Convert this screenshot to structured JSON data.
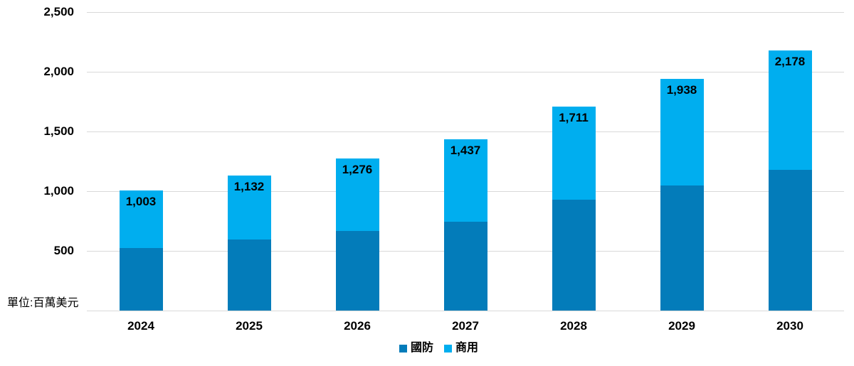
{
  "unit_label": "單位:百萬美元",
  "chart_data": {
    "type": "bar",
    "stacked": true,
    "title": "",
    "categories": [
      "2024",
      "2025",
      "2026",
      "2027",
      "2028",
      "2029",
      "2030"
    ],
    "series": [
      {
        "name": "國防",
        "color": "#037CBA",
        "values": [
          525,
          595,
          665,
          745,
          930,
          1050,
          1180
        ]
      },
      {
        "name": "商用",
        "color": "#00AEEF",
        "values": [
          478,
          537,
          611,
          692,
          781,
          888,
          998
        ]
      }
    ],
    "totals": [
      1003,
      1132,
      1276,
      1437,
      1711,
      1938,
      2178
    ],
    "total_labels": [
      "1,003",
      "1,132",
      "1,276",
      "1,437",
      "1,711",
      "1,938",
      "2,178"
    ],
    "ylim": [
      0,
      2500
    ],
    "yticks": [
      500,
      1000,
      1500,
      2000,
      2500
    ],
    "ytick_labels": [
      "500",
      "1,000",
      "1,500",
      "2,000",
      "2,500"
    ],
    "grid": true,
    "gridline_color": "#D9D9D9",
    "text_color": "#000000",
    "legend_position": "bottom"
  }
}
